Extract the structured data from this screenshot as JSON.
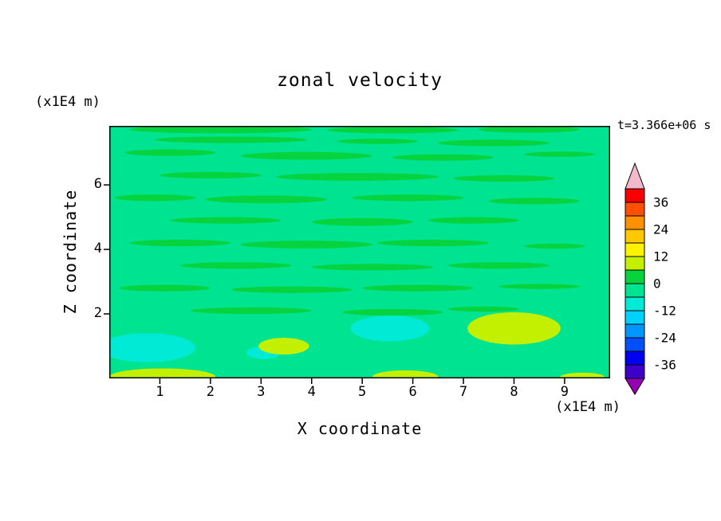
{
  "chart_data": {
    "type": "heatmap",
    "title": "zonal velocity",
    "xlabel": "X coordinate",
    "ylabel": "Z coordinate",
    "x_unit": "(x1E4 m)",
    "y_unit": "(x1E4 m)",
    "time_annotation": "t=3.366e+06 s",
    "x_ticks": [
      1,
      2,
      3,
      4,
      5,
      6,
      7,
      8,
      9
    ],
    "y_ticks": [
      2,
      4,
      6
    ],
    "xlim": [
      0,
      9.9
    ],
    "ylim": [
      0,
      7.83
    ],
    "grid": false,
    "legend_position": "right-colorbar",
    "colorbar": {
      "labeled_levels": [
        36,
        24,
        12,
        0,
        -12,
        -24,
        -36
      ],
      "cell_step": 6,
      "arrow_top_color": "#f2b9cb",
      "arrow_bottom_color": "#9600b4",
      "cells": [
        {
          "from": 36,
          "to": 42,
          "color": "#f80000"
        },
        {
          "from": 30,
          "to": 36,
          "color": "#ff5000"
        },
        {
          "from": 24,
          "to": 30,
          "color": "#ff9100"
        },
        {
          "from": 18,
          "to": 24,
          "color": "#ffc800"
        },
        {
          "from": 12,
          "to": 18,
          "color": "#fdf300"
        },
        {
          "from": 6,
          "to": 12,
          "color": "#c3ef00"
        },
        {
          "from": 0,
          "to": 6,
          "color": "#06d33e"
        },
        {
          "from": -6,
          "to": 0,
          "color": "#00e391"
        },
        {
          "from": -12,
          "to": -6,
          "color": "#00ead5"
        },
        {
          "from": -18,
          "to": -12,
          "color": "#00d2ff"
        },
        {
          "from": -24,
          "to": -18,
          "color": "#0096ff"
        },
        {
          "from": -30,
          "to": -24,
          "color": "#0050ff"
        },
        {
          "from": -36,
          "to": -30,
          "color": "#0000f0"
        },
        {
          "from": -42,
          "to": -36,
          "color": "#3c00c8"
        }
      ]
    },
    "field": {
      "description": "Zonal velocity field: mostly in the -6..0 band (spring green) with elongated horizontal 0..6 streaks, a few -12..-6 (turquoise) patches and 6..12 (yellow-green) patches near the bottom boundary.",
      "background_value": -3,
      "patches": [
        {
          "cx": 2.2,
          "cy": 7.72,
          "rx": 1.8,
          "ry": 0.12,
          "value": 3
        },
        {
          "cx": 5.6,
          "cy": 7.7,
          "rx": 1.3,
          "ry": 0.1,
          "value": 3
        },
        {
          "cx": 8.3,
          "cy": 7.72,
          "rx": 1.0,
          "ry": 0.1,
          "value": 3
        },
        {
          "cx": 2.4,
          "cy": 7.4,
          "rx": 1.5,
          "ry": 0.1,
          "value": 3
        },
        {
          "cx": 5.3,
          "cy": 7.35,
          "rx": 0.8,
          "ry": 0.08,
          "value": 3
        },
        {
          "cx": 7.6,
          "cy": 7.3,
          "rx": 1.1,
          "ry": 0.1,
          "value": 3
        },
        {
          "cx": 1.2,
          "cy": 7.0,
          "rx": 0.9,
          "ry": 0.1,
          "value": 3
        },
        {
          "cx": 3.9,
          "cy": 6.9,
          "rx": 1.3,
          "ry": 0.12,
          "value": 3
        },
        {
          "cx": 6.6,
          "cy": 6.85,
          "rx": 1.0,
          "ry": 0.1,
          "value": 3
        },
        {
          "cx": 8.9,
          "cy": 6.95,
          "rx": 0.7,
          "ry": 0.08,
          "value": 3
        },
        {
          "cx": 2.0,
          "cy": 6.3,
          "rx": 1.0,
          "ry": 0.1,
          "value": 3
        },
        {
          "cx": 4.9,
          "cy": 6.25,
          "rx": 1.6,
          "ry": 0.12,
          "value": 3
        },
        {
          "cx": 7.8,
          "cy": 6.2,
          "rx": 1.0,
          "ry": 0.1,
          "value": 3
        },
        {
          "cx": 0.9,
          "cy": 5.6,
          "rx": 0.8,
          "ry": 0.1,
          "value": 3
        },
        {
          "cx": 3.1,
          "cy": 5.55,
          "rx": 1.2,
          "ry": 0.12,
          "value": 3
        },
        {
          "cx": 5.9,
          "cy": 5.6,
          "rx": 1.1,
          "ry": 0.1,
          "value": 3
        },
        {
          "cx": 8.4,
          "cy": 5.5,
          "rx": 0.9,
          "ry": 0.1,
          "value": 3
        },
        {
          "cx": 2.3,
          "cy": 4.9,
          "rx": 1.1,
          "ry": 0.1,
          "value": 3
        },
        {
          "cx": 5.0,
          "cy": 4.85,
          "rx": 1.0,
          "ry": 0.12,
          "value": 3
        },
        {
          "cx": 7.2,
          "cy": 4.9,
          "rx": 0.9,
          "ry": 0.1,
          "value": 3
        },
        {
          "cx": 1.4,
          "cy": 4.2,
          "rx": 1.0,
          "ry": 0.1,
          "value": 3
        },
        {
          "cx": 3.9,
          "cy": 4.15,
          "rx": 1.3,
          "ry": 0.12,
          "value": 3
        },
        {
          "cx": 6.4,
          "cy": 4.2,
          "rx": 1.1,
          "ry": 0.1,
          "value": 3
        },
        {
          "cx": 8.8,
          "cy": 4.1,
          "rx": 0.6,
          "ry": 0.08,
          "value": 3
        },
        {
          "cx": 2.5,
          "cy": 3.5,
          "rx": 1.1,
          "ry": 0.1,
          "value": 3
        },
        {
          "cx": 5.2,
          "cy": 3.45,
          "rx": 1.2,
          "ry": 0.1,
          "value": 3
        },
        {
          "cx": 7.7,
          "cy": 3.5,
          "rx": 1.0,
          "ry": 0.1,
          "value": 3
        },
        {
          "cx": 1.1,
          "cy": 2.8,
          "rx": 0.9,
          "ry": 0.1,
          "value": 3
        },
        {
          "cx": 3.6,
          "cy": 2.75,
          "rx": 1.2,
          "ry": 0.1,
          "value": 3
        },
        {
          "cx": 6.1,
          "cy": 2.8,
          "rx": 1.1,
          "ry": 0.1,
          "value": 3
        },
        {
          "cx": 8.5,
          "cy": 2.85,
          "rx": 0.8,
          "ry": 0.08,
          "value": 3
        },
        {
          "cx": 2.8,
          "cy": 2.1,
          "rx": 1.2,
          "ry": 0.1,
          "value": 3
        },
        {
          "cx": 5.6,
          "cy": 2.05,
          "rx": 1.0,
          "ry": 0.1,
          "value": 3
        },
        {
          "cx": 7.4,
          "cy": 2.15,
          "rx": 0.7,
          "ry": 0.08,
          "value": 3
        },
        {
          "cx": 0.75,
          "cy": 0.95,
          "rx": 0.95,
          "ry": 0.45,
          "value": -9
        },
        {
          "cx": 5.55,
          "cy": 1.55,
          "rx": 0.78,
          "ry": 0.4,
          "value": -9
        },
        {
          "cx": 3.05,
          "cy": 0.8,
          "rx": 0.34,
          "ry": 0.2,
          "value": -9
        },
        {
          "cx": 8.0,
          "cy": 1.55,
          "rx": 0.92,
          "ry": 0.5,
          "value": 9
        },
        {
          "cx": 3.45,
          "cy": 1.0,
          "rx": 0.5,
          "ry": 0.26,
          "value": 9
        },
        {
          "cx": 1.05,
          "cy": 0.05,
          "rx": 1.05,
          "ry": 0.26,
          "value": 9
        },
        {
          "cx": 5.85,
          "cy": 0.05,
          "rx": 0.65,
          "ry": 0.2,
          "value": 9
        },
        {
          "cx": 9.35,
          "cy": 0.03,
          "rx": 0.45,
          "ry": 0.15,
          "value": 9
        }
      ]
    }
  }
}
